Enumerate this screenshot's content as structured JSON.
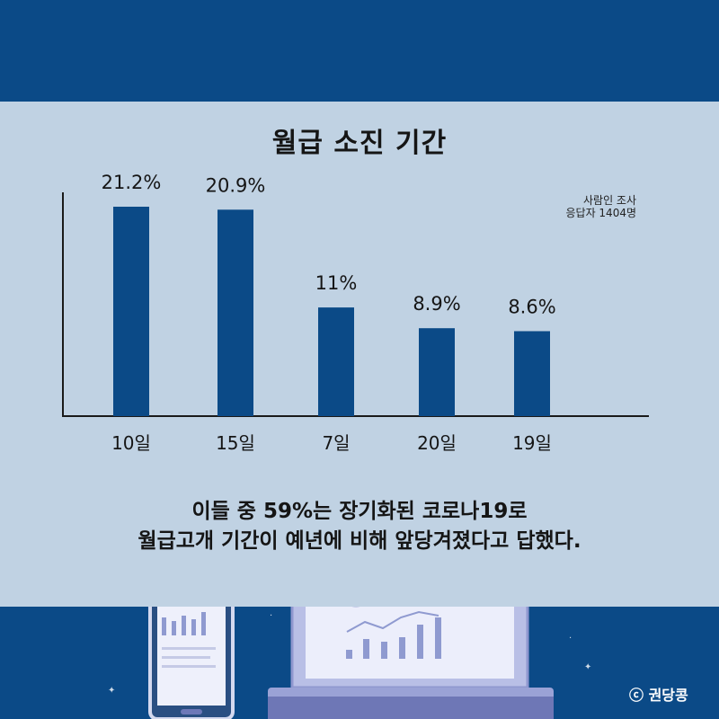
{
  "colors": {
    "bar": "#0b4a87",
    "panel": "#c0d2e3",
    "band": "#0b4a87",
    "text": "#151515"
  },
  "chart_data": {
    "type": "bar",
    "title": "월급 소진 기간",
    "categories": [
      "10일",
      "15일",
      "7일",
      "20일",
      "19일"
    ],
    "values": [
      21.2,
      20.9,
      11,
      8.9,
      8.6
    ],
    "value_labels": [
      "21.2%",
      "20.9%",
      "11%",
      "8.9%",
      "8.6%"
    ],
    "xlabel": "",
    "ylabel": "",
    "ylim": [
      0,
      21.2
    ],
    "grid": false,
    "legend": "none"
  },
  "note": {
    "line1": "사람인 조사",
    "line2": "응답자 1404명"
  },
  "caption": {
    "line1": "이들 중 59%는 장기화된 코로나19로",
    "line2": "월급고개 기간이 예년에 비해 앞당겨졌다고 답했다."
  },
  "watermark": "ⓒ 권당콩",
  "illustration": {
    "icons": [
      "smartphone-icon",
      "laptop-icon"
    ]
  }
}
